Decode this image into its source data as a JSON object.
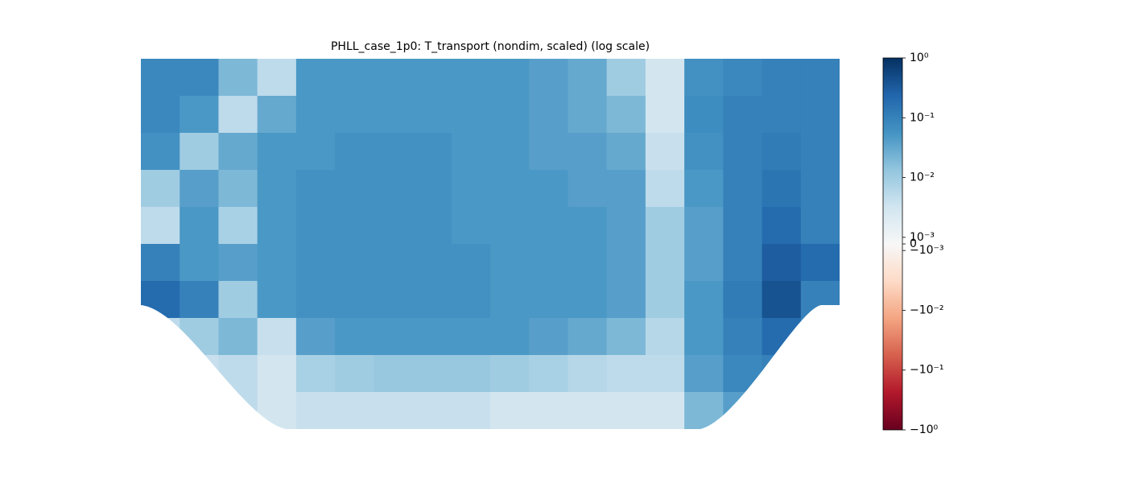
{
  "chart_data": {
    "type": "heatmap",
    "title": "PHLL_case_1p0: T_transport (nondim, scaled) (log scale)",
    "colormap": "RdBu",
    "clim": [
      -1,
      1
    ],
    "linthresh": 0.001,
    "linscale": 0.11,
    "cticks": [
      {
        "value": 1,
        "label": "10⁰"
      },
      {
        "value": 0.1,
        "label": "10⁻¹"
      },
      {
        "value": 0.01,
        "label": "10⁻²"
      },
      {
        "value": 0.001,
        "label": "10⁻³"
      },
      0,
      {
        "value": -0.001,
        "label": "−10⁻³"
      },
      {
        "value": -0.01,
        "label": "−10⁻²"
      },
      {
        "value": -0.1,
        "label": "−10⁻¹"
      },
      {
        "value": -1,
        "label": "−10⁰"
      }
    ],
    "z": [
      [
        0.08,
        0.08,
        0.02,
        0.005,
        0.05,
        0.05,
        0.05,
        0.05,
        0.05,
        0.05,
        0.04,
        0.03,
        0.01,
        0.003,
        0.06,
        0.08,
        0.1,
        0.1
      ],
      [
        0.08,
        0.05,
        0.005,
        0.03,
        0.05,
        0.05,
        0.05,
        0.05,
        0.05,
        0.05,
        0.04,
        0.03,
        0.02,
        0.003,
        0.07,
        0.1,
        0.1,
        0.1
      ],
      [
        0.06,
        0.01,
        0.03,
        0.05,
        0.05,
        0.06,
        0.06,
        0.06,
        0.05,
        0.05,
        0.04,
        0.04,
        0.03,
        0.004,
        0.06,
        0.1,
        0.12,
        0.1
      ],
      [
        0.01,
        0.04,
        0.02,
        0.05,
        0.06,
        0.06,
        0.06,
        0.06,
        0.05,
        0.05,
        0.05,
        0.04,
        0.04,
        0.005,
        0.05,
        0.1,
        0.15,
        0.1
      ],
      [
        0.005,
        0.05,
        0.008,
        0.05,
        0.06,
        0.06,
        0.06,
        0.06,
        0.05,
        0.05,
        0.05,
        0.05,
        0.04,
        0.01,
        0.04,
        0.1,
        0.2,
        0.1
      ],
      [
        0.1,
        0.05,
        0.04,
        0.05,
        0.06,
        0.06,
        0.06,
        0.06,
        0.06,
        0.05,
        0.05,
        0.05,
        0.04,
        0.01,
        0.04,
        0.1,
        0.3,
        0.2
      ],
      [
        0.2,
        0.1,
        0.01,
        0.05,
        0.06,
        0.06,
        0.06,
        0.06,
        0.06,
        0.05,
        0.05,
        0.05,
        0.04,
        0.01,
        0.05,
        0.12,
        0.4,
        0.1
      ],
      [
        0.005,
        0.01,
        0.02,
        0.004,
        0.04,
        0.05,
        0.05,
        0.05,
        0.05,
        0.05,
        0.04,
        0.03,
        0.02,
        0.006,
        0.05,
        0.1,
        0.2,
        0.1
      ],
      [
        0.003,
        0.004,
        0.005,
        0.003,
        0.008,
        0.01,
        0.012,
        0.012,
        0.012,
        0.01,
        0.008,
        0.006,
        0.005,
        0.005,
        0.04,
        0.08,
        0.1,
        0.05
      ],
      [
        0.003,
        0.003,
        0.005,
        0.003,
        0.004,
        0.004,
        0.004,
        0.004,
        0.004,
        0.003,
        0.003,
        0.003,
        0.003,
        0.003,
        0.02,
        0.04,
        0.05,
        0.03
      ]
    ]
  }
}
